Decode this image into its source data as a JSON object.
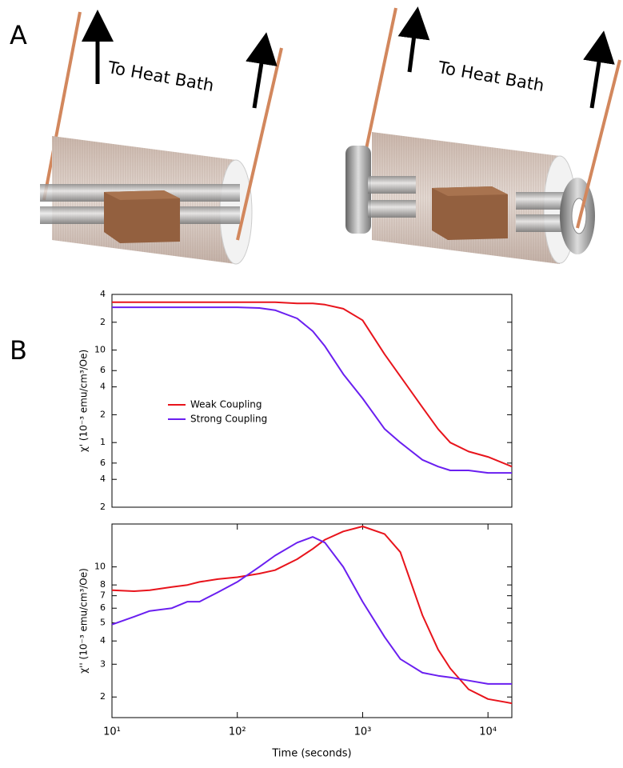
{
  "panel_a": {
    "label": "A",
    "annotations": [
      "To Heat Bath",
      "To Heat Bath"
    ]
  },
  "panel_b": {
    "label": "B"
  },
  "chart_data": [
    {
      "type": "line",
      "ylabel": "χ' (10⁻³ emu/cm³/Oe)",
      "log_x": true,
      "log_y": true,
      "xlim": [
        10,
        15500
      ],
      "ylim": [
        0.2,
        40
      ],
      "yticks": [
        {
          "value": 40,
          "label": "4"
        },
        {
          "value": 20,
          "label": "2"
        },
        10,
        6,
        4,
        2,
        1,
        {
          "value": 0.6,
          "label": "6"
        },
        {
          "value": 0.4,
          "label": "4"
        },
        {
          "value": 0.2,
          "label": "2"
        }
      ],
      "legend": "center-left",
      "x": [
        10,
        15,
        20,
        30,
        40,
        50,
        70,
        100,
        150,
        200,
        300,
        400,
        500,
        700,
        1000,
        1500,
        2000,
        3000,
        4000,
        5000,
        7000,
        10000,
        15500
      ],
      "series": [
        {
          "name": "Weak Coupling",
          "color": "#e8141c",
          "values": [
            33,
            33,
            33,
            33,
            33,
            33,
            33,
            33,
            33,
            33,
            32,
            32,
            31,
            28,
            21,
            9,
            5.2,
            2.4,
            1.4,
            1.0,
            0.8,
            0.7,
            0.55
          ]
        },
        {
          "name": "Strong Coupling",
          "color": "#6a1ff0",
          "values": [
            29,
            29,
            29,
            29,
            29,
            29,
            29,
            29,
            28.5,
            27,
            22,
            16,
            11,
            5.5,
            3,
            1.4,
            1.0,
            0.65,
            0.55,
            0.5,
            0.5,
            0.47,
            0.47
          ]
        }
      ]
    },
    {
      "type": "line",
      "ylabel": "χ'' (10⁻³ emu/cm³/Oe)",
      "xlabel": "Time (seconds)",
      "log_x": true,
      "log_y": true,
      "xlim": [
        10,
        15500
      ],
      "ylim": [
        1.55,
        17
      ],
      "xticks": [
        {
          "value": 10,
          "label": "10¹"
        },
        {
          "value": 100,
          "label": "10²"
        },
        {
          "value": 1000,
          "label": "10³"
        },
        {
          "value": 10000,
          "label": "10⁴"
        }
      ],
      "yticks": [
        10,
        8,
        7,
        6,
        5,
        4,
        3,
        2
      ],
      "x": [
        10,
        15,
        20,
        30,
        40,
        50,
        70,
        100,
        150,
        200,
        300,
        400,
        500,
        700,
        1000,
        1500,
        2000,
        3000,
        4000,
        5000,
        7000,
        10000,
        15500
      ],
      "series": [
        {
          "color": "#e8141c",
          "values": [
            7.5,
            7.4,
            7.5,
            7.8,
            8.0,
            8.3,
            8.6,
            8.8,
            9.2,
            9.6,
            11,
            12.5,
            14,
            15.5,
            16.5,
            15,
            12,
            5.5,
            3.6,
            2.85,
            2.2,
            1.95,
            1.85
          ]
        },
        {
          "color": "#6a1ff0",
          "values": [
            4.9,
            5.4,
            5.8,
            6.0,
            6.5,
            6.5,
            7.3,
            8.3,
            10,
            11.5,
            13.5,
            14.5,
            13.5,
            10,
            6.5,
            4.2,
            3.2,
            2.7,
            2.6,
            2.55,
            2.45,
            2.35,
            2.35
          ]
        }
      ]
    }
  ]
}
